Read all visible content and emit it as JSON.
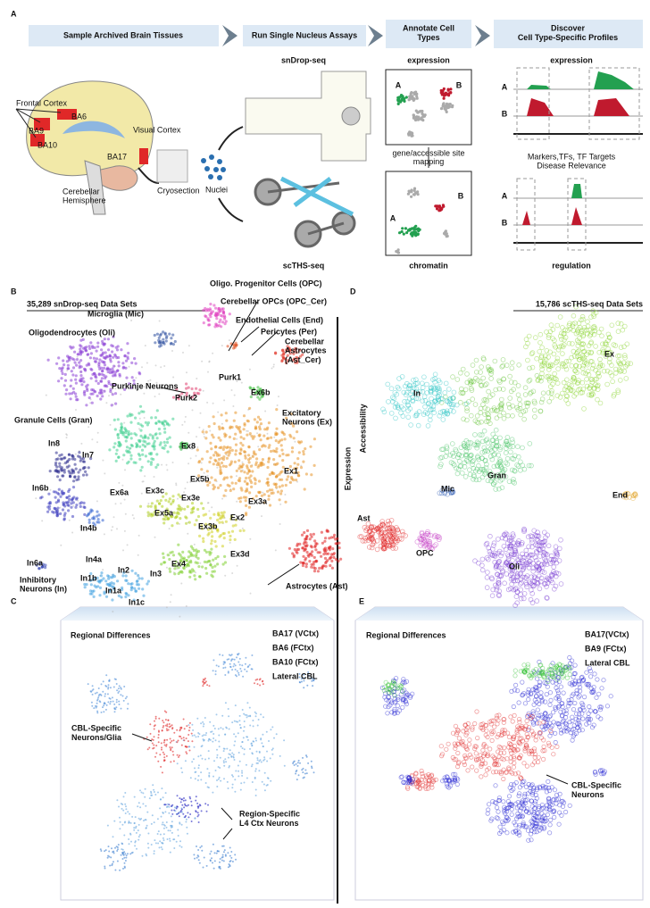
{
  "panel_a": {
    "label": "A",
    "steps": [
      "Sample Archived Brain Tissues",
      "Run Single Nucleus Assays",
      [
        "Annotate Cell",
        "Types"
      ],
      [
        "Discover",
        "Cell Type-Specific Profiles"
      ]
    ],
    "brain_labels": [
      "Frontal Cortex",
      "BA6",
      "BA9",
      "BA10",
      "Visual Cortex",
      "BA17",
      [
        "Cerebellar",
        "Hemisphere"
      ],
      "Cryosection",
      "Nuclei"
    ],
    "assays": [
      "snDrop-seq",
      "scTHS-seq"
    ],
    "annotate": {
      "top": "expression",
      "bottom": "chromatin",
      "mapping": [
        "gene/accessible site",
        "mapping"
      ],
      "top_groups": [
        "A",
        "B"
      ],
      "bottom_groups": [
        "A",
        "B"
      ]
    },
    "discover": {
      "top": "expression",
      "top_tracks": [
        "A",
        "B"
      ],
      "middle": [
        "Markers,TFs, TF Targets",
        "Disease Relevance"
      ],
      "bottom_tracks": [
        "A",
        "B"
      ],
      "bottom": "regulation"
    }
  },
  "panel_b": {
    "label": "B",
    "title": "35,289 snDrop-seq Data Sets",
    "cluster_labels": [
      "Oligo. Progenitor Cells (OPC)",
      "Cerebellar OPCs (OPC_Cer)",
      "Microglia (Mic)",
      "Endothelial Cells (End)",
      "Pericytes (Per)",
      "Oligodendrocytes (Oli)",
      [
        "Cerebellar",
        "Astrocytes",
        "(Ast_Cer)"
      ],
      "Purk1",
      "Purkinje Neurons",
      "Purk2",
      "Ex6b",
      [
        "Excitatory",
        "Neurons (Ex)"
      ],
      "Granule Cells (Gran)",
      "In8",
      "In7",
      "Ex8",
      "Ex1",
      "Ex5b",
      "In6b",
      "Ex3c",
      "Ex6a",
      "Ex3e",
      "Ex3a",
      "Ex5a",
      "Ex2",
      "In4b",
      "Ex3b",
      "Ex3d",
      "Ex4",
      "In6a",
      "In4a",
      "In2",
      "In3",
      "In1b",
      "In1a",
      "In1c",
      "Astrocytes (Ast)",
      [
        "Inhibitory",
        "Neurons (In)"
      ]
    ]
  },
  "panel_d": {
    "label": "D",
    "title": "15,786 scTHS-seq Data Sets",
    "side_labels": [
      "Expression",
      "Accessibility"
    ],
    "cluster_labels": [
      "Ex",
      "In",
      "Gran",
      "End",
      "Mic",
      "Ast",
      "OPC",
      "Oli"
    ]
  },
  "panel_c": {
    "label": "C",
    "title": "Regional Differences",
    "legend": [
      {
        "name": "BA17 (VCtx)",
        "color": "#1a1ad0"
      },
      {
        "name": "BA6 (FCtx)",
        "color": "#30d030"
      },
      {
        "name": "BA10 (FCtx)",
        "color": "#20c8e0"
      },
      {
        "name": "Lateral CBL",
        "color": "#e02828"
      }
    ],
    "annotations": [
      [
        "CBL-Specific",
        "Neurons/Glia"
      ],
      [
        "Region-Specific",
        "L4 Ctx Neurons"
      ]
    ]
  },
  "panel_e": {
    "label": "E",
    "title": "Regional Differences",
    "legend": [
      {
        "name": "BA17(VCtx)",
        "color": "#1a1ad0"
      },
      {
        "name": "BA9 (FCtx)",
        "color": "#30d030"
      },
      {
        "name": "Lateral CBL",
        "color": "#e02828"
      }
    ],
    "annotations": [
      [
        "CBL-Specific",
        "Neurons"
      ]
    ]
  }
}
